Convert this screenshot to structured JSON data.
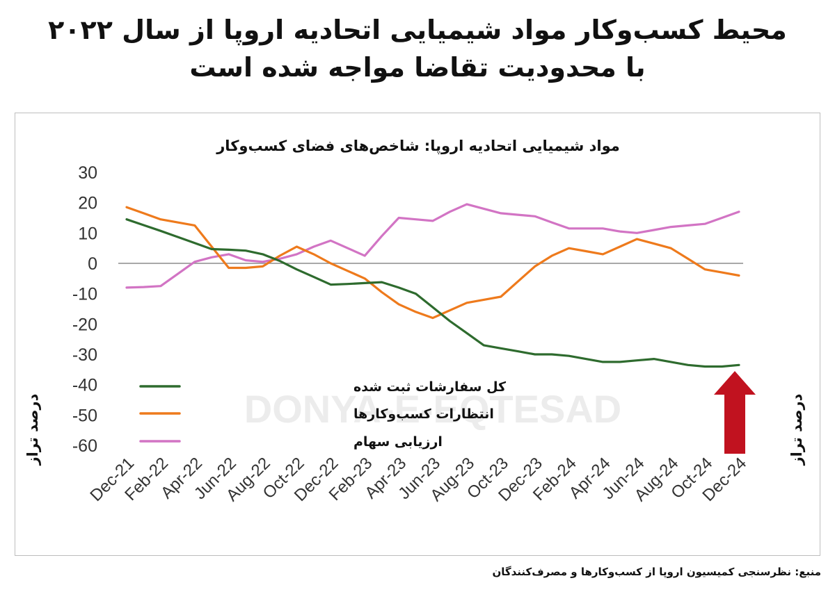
{
  "headline": {
    "line1": "محیط کسب‌وکار مواد شیمیایی اتحادیه اروپا از سال ۲۰۲۲",
    "line2": "با محدودیت تقاضا مواجه شده است"
  },
  "watermark": "DONYA-E-EQTESAD",
  "source": "منبع: نظرسنجی کمیسیون اروپا از کسب‌وکارها و مصرف‌کنندگان",
  "colors": {
    "orders": "#2e6b2e",
    "expectations": "#ee7a1c",
    "stocks": "#d274c4",
    "arrow": "#c1121f",
    "zero_line": "#8c8c8c"
  },
  "chart_data": {
    "type": "line",
    "title": "مواد شیمیایی اتحادیه اروپا: شاخص‌های فضای کسب‌وکار",
    "ylabel_left": "درصد تراز",
    "ylabel_right": "درصد تراز",
    "ylim": [
      -60,
      30
    ],
    "yticks": [
      30,
      20,
      10,
      0,
      -10,
      -20,
      -30,
      -40,
      -50,
      -60
    ],
    "x_tick_labels": [
      "Dec-21",
      "Feb-22",
      "Apr-22",
      "Jun-22",
      "Aug-22",
      "Oct-22",
      "Dec-22",
      "Feb-23",
      "Apr-23",
      "Jun-23",
      "Aug-23",
      "Oct-23",
      "Dec-23",
      "Feb-24",
      "Apr-24",
      "Jun-24",
      "Aug-24",
      "Oct-24",
      "Dec-24"
    ],
    "x": [
      "Dec-21",
      "Jan-22",
      "Feb-22",
      "Mar-22",
      "Apr-22",
      "May-22",
      "Jun-22",
      "Jul-22",
      "Aug-22",
      "Sep-22",
      "Oct-22",
      "Nov-22",
      "Dec-22",
      "Jan-23",
      "Feb-23",
      "Mar-23",
      "Apr-23",
      "May-23",
      "Jun-23",
      "Jul-23",
      "Aug-23",
      "Sep-23",
      "Oct-23",
      "Nov-23",
      "Dec-23",
      "Jan-24",
      "Feb-24",
      "Mar-24",
      "Apr-24",
      "May-24",
      "Jun-24",
      "Jul-24",
      "Aug-24",
      "Sep-24",
      "Oct-24",
      "Nov-24",
      "Dec-24"
    ],
    "legend_position": "bottom-left",
    "grid": false,
    "annotation": "red upward arrow at Dec-24",
    "series": [
      {
        "name": "کل سفارشات ثبت شده",
        "color_key": "orders",
        "values": [
          14.5,
          12.6,
          10.7,
          8.7,
          6.7,
          4.7,
          4.5,
          4.2,
          3.0,
          0.8,
          -2.0,
          -4.5,
          -7.0,
          -6.8,
          -6.5,
          -6.2,
          -8.0,
          -10.0,
          -14.5,
          -19.0,
          -23.0,
          -27.0,
          -28.0,
          -29.0,
          -30.0,
          -30.0,
          -30.5,
          -31.5,
          -32.5,
          -32.5,
          -32.0,
          -31.5,
          -32.5,
          -33.5,
          -34.0,
          -34.0,
          -33.5
        ]
      },
      {
        "name": "انتظارات کسب‌وکارها",
        "color_key": "expectations",
        "values": [
          18.5,
          16.5,
          14.5,
          13.5,
          12.5,
          5.5,
          -1.5,
          -1.5,
          -1.0,
          2.5,
          5.5,
          3.0,
          0.0,
          -2.5,
          -5.0,
          -9.5,
          -13.5,
          -16.0,
          -18.0,
          -15.5,
          -13.0,
          -12.0,
          -11.0,
          -6.0,
          -1.0,
          2.5,
          5.0,
          4.0,
          3.0,
          5.5,
          8.0,
          6.5,
          5.0,
          1.5,
          -2.0,
          -3.0,
          -4.0
        ]
      },
      {
        "name": "ارزیابی سهام",
        "color_key": "stocks",
        "values": [
          -8.0,
          -7.8,
          -7.5,
          -3.5,
          0.5,
          2.0,
          3.0,
          1.0,
          0.5,
          1.5,
          3.0,
          5.5,
          7.5,
          5.0,
          2.5,
          9.0,
          15.0,
          14.5,
          14.0,
          17.0,
          19.5,
          18.0,
          16.5,
          16.0,
          15.5,
          13.5,
          11.5,
          11.5,
          11.5,
          10.5,
          10.0,
          11.0,
          12.0,
          12.5,
          13.0,
          15.0,
          17.0
        ]
      }
    ]
  }
}
